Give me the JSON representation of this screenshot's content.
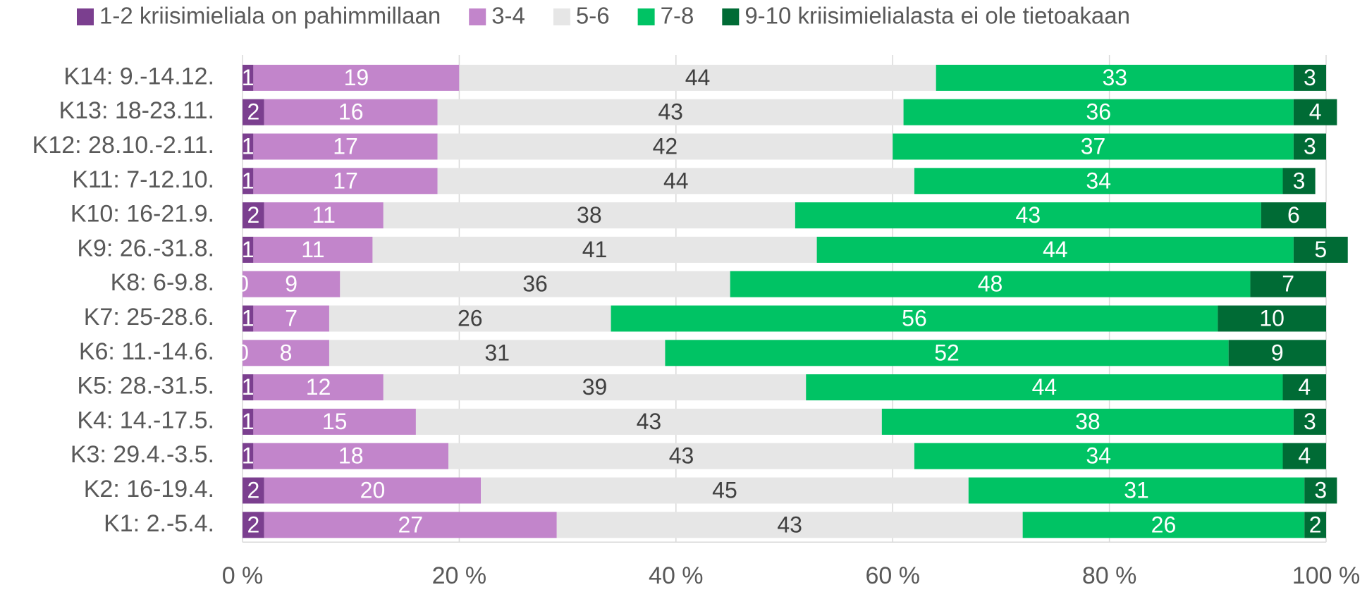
{
  "chart_data": {
    "type": "stacked_barh",
    "categories": [
      "K14: 9.-14.12.",
      "K13: 18-23.11.",
      "K12: 28.10.-2.11.",
      "K11: 7-12.10.",
      "K10: 16-21.9.",
      "K9: 26.-31.8.",
      "K8: 6-9.8.",
      "K7: 25-28.6.",
      "K6: 11.-14.6.",
      "K5: 28.-31.5.",
      "K4: 14.-17.5.",
      "K3: 29.4.-3.5.",
      "K2: 16-19.4.",
      "K1: 2.-5.4."
    ],
    "series": [
      {
        "name": "1-2 kriisimieliala on pahimmillaan",
        "color": "#7b3f8f",
        "values": [
          1,
          2,
          1,
          1,
          2,
          1,
          0,
          1,
          0,
          1,
          1,
          1,
          2,
          2
        ]
      },
      {
        "name": "3-4",
        "color": "#c285cb",
        "values": [
          19,
          16,
          17,
          17,
          11,
          11,
          9,
          7,
          8,
          12,
          15,
          18,
          20,
          27
        ]
      },
      {
        "name": "5-6",
        "color": "#e6e6e6",
        "values": [
          44,
          43,
          42,
          44,
          38,
          41,
          36,
          26,
          31,
          39,
          43,
          43,
          45,
          43
        ]
      },
      {
        "name": "7-8",
        "color": "#00c364",
        "values": [
          33,
          36,
          37,
          34,
          43,
          44,
          48,
          56,
          52,
          44,
          38,
          34,
          31,
          26
        ]
      },
      {
        "name": "9-10 kriisimielialasta ei ole tietoakaan",
        "color": "#006b35",
        "values": [
          3,
          4,
          3,
          3,
          6,
          5,
          7,
          10,
          9,
          4,
          3,
          4,
          3,
          2
        ]
      }
    ],
    "xlim": [
      0,
      100
    ],
    "xticks": [
      {
        "value": 0,
        "label": "0 %"
      },
      {
        "value": 20,
        "label": "20 %"
      },
      {
        "value": 40,
        "label": "40 %"
      },
      {
        "value": 60,
        "label": "60 %"
      },
      {
        "value": 80,
        "label": "80 %"
      },
      {
        "value": 100,
        "label": "100 %"
      }
    ],
    "grid": true,
    "legend": "top"
  }
}
